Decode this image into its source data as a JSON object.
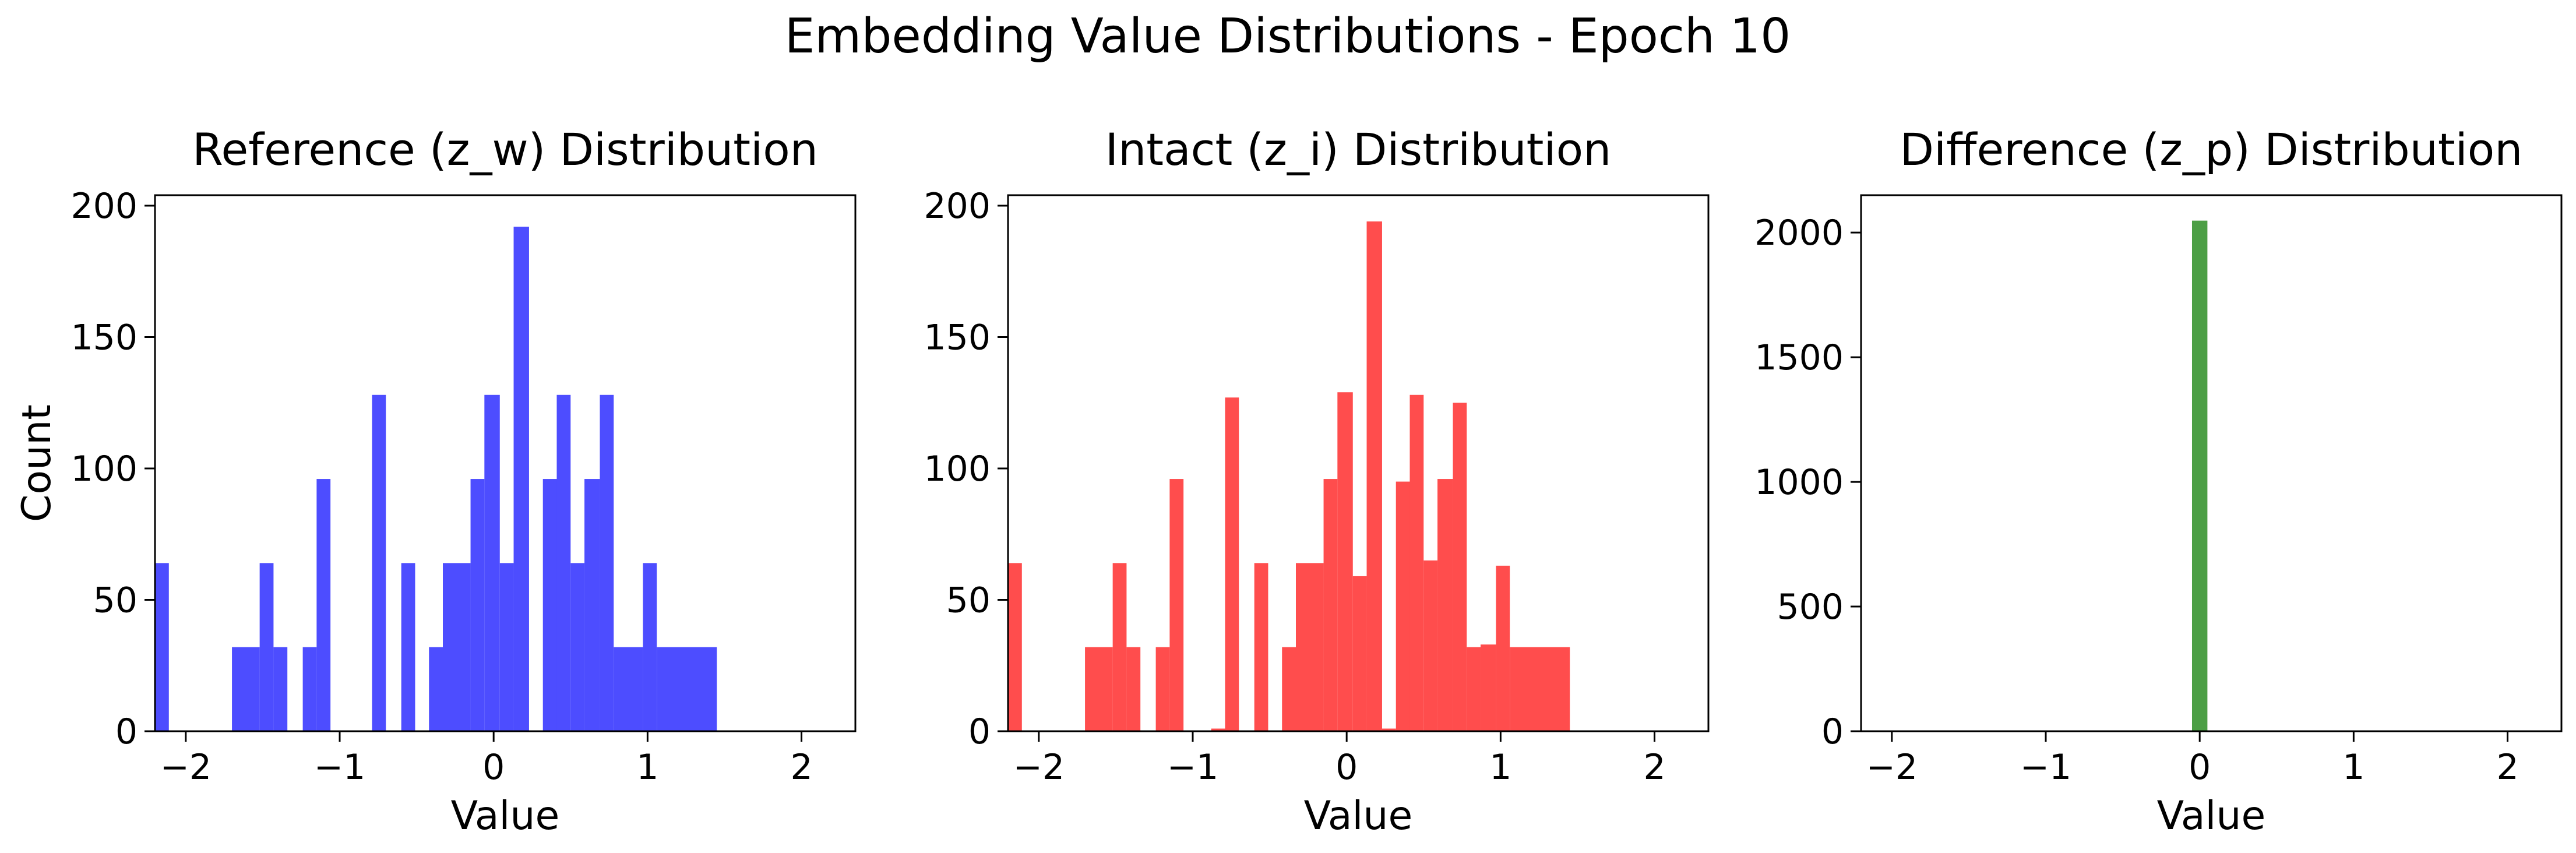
{
  "figure": {
    "suptitle": "Embedding Value Distributions - Epoch 10"
  },
  "chart_data": [
    {
      "type": "bar",
      "title": "Reference (z_w) Distribution",
      "xlabel": "Value",
      "ylabel": "Count",
      "color": "#4d4dff",
      "xlim": [
        -2.2,
        2.35
      ],
      "ylim": [
        0,
        204
      ],
      "xticks": [
        -2,
        -1,
        0,
        1,
        2
      ],
      "yticks": [
        0,
        50,
        100,
        150,
        200
      ],
      "bins": [
        {
          "x0": -2.2,
          "x1": -2.11,
          "count": 64
        },
        {
          "x0": -1.7,
          "x1": -1.52,
          "count": 32
        },
        {
          "x0": -1.52,
          "x1": -1.43,
          "count": 64
        },
        {
          "x0": -1.43,
          "x1": -1.34,
          "count": 32
        },
        {
          "x0": -1.24,
          "x1": -1.15,
          "count": 32
        },
        {
          "x0": -1.15,
          "x1": -1.06,
          "count": 96
        },
        {
          "x0": -0.79,
          "x1": -0.7,
          "count": 128
        },
        {
          "x0": -0.6,
          "x1": -0.51,
          "count": 64
        },
        {
          "x0": -0.42,
          "x1": -0.33,
          "count": 32
        },
        {
          "x0": -0.33,
          "x1": -0.15,
          "count": 64
        },
        {
          "x0": -0.15,
          "x1": -0.06,
          "count": 96
        },
        {
          "x0": -0.06,
          "x1": 0.04,
          "count": 128
        },
        {
          "x0": 0.04,
          "x1": 0.13,
          "count": 64
        },
        {
          "x0": 0.13,
          "x1": 0.23,
          "count": 192
        },
        {
          "x0": 0.32,
          "x1": 0.41,
          "count": 96
        },
        {
          "x0": 0.41,
          "x1": 0.5,
          "count": 128
        },
        {
          "x0": 0.5,
          "x1": 0.59,
          "count": 64
        },
        {
          "x0": 0.59,
          "x1": 0.69,
          "count": 96
        },
        {
          "x0": 0.69,
          "x1": 0.78,
          "count": 128
        },
        {
          "x0": 0.78,
          "x1": 0.97,
          "count": 32
        },
        {
          "x0": 0.97,
          "x1": 1.06,
          "count": 64
        },
        {
          "x0": 1.06,
          "x1": 1.45,
          "count": 32
        }
      ]
    },
    {
      "type": "bar",
      "title": "Intact (z_i) Distribution",
      "xlabel": "Value",
      "ylabel": "",
      "color": "#ff4d4d",
      "xlim": [
        -2.2,
        2.35
      ],
      "ylim": [
        0,
        204
      ],
      "xticks": [
        -2,
        -1,
        0,
        1,
        2
      ],
      "yticks": [
        0,
        50,
        100,
        150,
        200
      ],
      "bins": [
        {
          "x0": -2.2,
          "x1": -2.11,
          "count": 64
        },
        {
          "x0": -1.7,
          "x1": -1.52,
          "count": 32
        },
        {
          "x0": -1.52,
          "x1": -1.43,
          "count": 64
        },
        {
          "x0": -1.43,
          "x1": -1.34,
          "count": 32
        },
        {
          "x0": -1.24,
          "x1": -1.15,
          "count": 32
        },
        {
          "x0": -1.15,
          "x1": -1.06,
          "count": 96
        },
        {
          "x0": -0.88,
          "x1": -0.79,
          "count": 1
        },
        {
          "x0": -0.79,
          "x1": -0.7,
          "count": 127
        },
        {
          "x0": -0.6,
          "x1": -0.51,
          "count": 64
        },
        {
          "x0": -0.42,
          "x1": -0.33,
          "count": 32
        },
        {
          "x0": -0.33,
          "x1": -0.15,
          "count": 64
        },
        {
          "x0": -0.15,
          "x1": -0.06,
          "count": 96
        },
        {
          "x0": -0.06,
          "x1": 0.04,
          "count": 129
        },
        {
          "x0": 0.04,
          "x1": 0.13,
          "count": 59
        },
        {
          "x0": 0.13,
          "x1": 0.23,
          "count": 194
        },
        {
          "x0": 0.23,
          "x1": 0.32,
          "count": 1
        },
        {
          "x0": 0.32,
          "x1": 0.41,
          "count": 95
        },
        {
          "x0": 0.41,
          "x1": 0.5,
          "count": 128
        },
        {
          "x0": 0.5,
          "x1": 0.59,
          "count": 65
        },
        {
          "x0": 0.59,
          "x1": 0.69,
          "count": 96
        },
        {
          "x0": 0.69,
          "x1": 0.78,
          "count": 125
        },
        {
          "x0": 0.78,
          "x1": 0.87,
          "count": 32
        },
        {
          "x0": 0.87,
          "x1": 0.97,
          "count": 33
        },
        {
          "x0": 0.97,
          "x1": 1.06,
          "count": 63
        },
        {
          "x0": 1.06,
          "x1": 1.45,
          "count": 32
        }
      ]
    },
    {
      "type": "bar",
      "title": "Difference (z_p) Distribution",
      "xlabel": "Value",
      "ylabel": "",
      "color": "#4c9f45",
      "xlim": [
        -2.2,
        2.35
      ],
      "ylim": [
        0,
        2150
      ],
      "xticks": [
        -2,
        -1,
        0,
        1,
        2
      ],
      "yticks": [
        0,
        500,
        1000,
        1500,
        2000
      ],
      "bins": [
        {
          "x0": -0.05,
          "x1": 0.05,
          "count": 2048
        }
      ]
    }
  ]
}
